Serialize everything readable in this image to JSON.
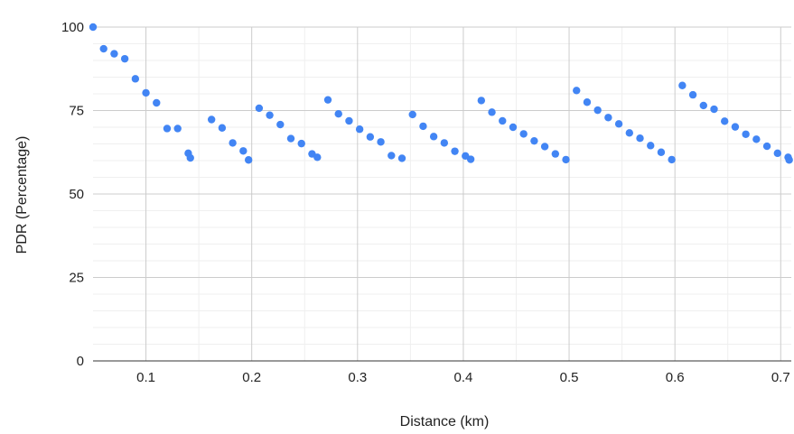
{
  "chart_data": {
    "type": "scatter",
    "xlabel": "Distance (km)",
    "ylabel": "PDR (Percentage)",
    "xlim": [
      0.05,
      0.71
    ],
    "ylim": [
      0,
      100
    ],
    "xticks": [
      0.1,
      0.2,
      0.3,
      0.4,
      0.5,
      0.6,
      0.7
    ],
    "xtick_labels": [
      "0.1",
      "0.2",
      "0.3",
      "0.4",
      "0.5",
      "0.6",
      "0.7"
    ],
    "yticks": [
      0,
      25,
      50,
      75,
      100
    ],
    "ytick_labels": [
      "0",
      "25",
      "50",
      "75",
      "100"
    ],
    "grid": true,
    "point_color": "#4285f4",
    "series": [
      {
        "x": [
          0.05,
          0.06,
          0.07,
          0.08,
          0.09,
          0.1,
          0.11,
          0.12,
          0.13,
          0.14,
          0.142,
          0.162,
          0.172,
          0.182,
          0.192,
          0.197,
          0.207,
          0.217,
          0.227,
          0.237,
          0.247,
          0.257,
          0.262,
          0.272,
          0.282,
          0.292,
          0.302,
          0.312,
          0.322,
          0.332,
          0.342,
          0.352,
          0.362,
          0.372,
          0.382,
          0.392,
          0.402,
          0.407,
          0.417,
          0.427,
          0.437,
          0.447,
          0.457,
          0.467,
          0.477,
          0.487,
          0.497,
          0.507,
          0.517,
          0.527,
          0.537,
          0.547,
          0.557,
          0.567,
          0.577,
          0.587,
          0.597,
          0.607,
          0.617,
          0.627,
          0.637,
          0.647,
          0.657,
          0.667,
          0.677,
          0.687,
          0.697,
          0.707,
          0.708
        ],
        "y": [
          100,
          93.5,
          92,
          90.5,
          84.5,
          80.3,
          77.3,
          69.6,
          69.6,
          62.2,
          60.8,
          72.3,
          69.8,
          65.3,
          62.9,
          60.2,
          75.7,
          73.6,
          70.8,
          66.6,
          65.1,
          62.0,
          61.0,
          78.2,
          74.0,
          71.9,
          69.4,
          67.1,
          65.6,
          61.5,
          60.7,
          73.8,
          70.3,
          67.2,
          65.3,
          62.8,
          61.4,
          60.4,
          78.0,
          74.5,
          71.9,
          70.0,
          68.0,
          65.9,
          64.2,
          62.0,
          60.3,
          81.0,
          77.5,
          75.1,
          72.9,
          71.0,
          68.3,
          66.7,
          64.5,
          62.5,
          60.3,
          82.5,
          79.7,
          76.5,
          75.4,
          71.8,
          70.1,
          67.9,
          66.4,
          64.3,
          62.2,
          61.0,
          60.2
        ]
      }
    ]
  }
}
